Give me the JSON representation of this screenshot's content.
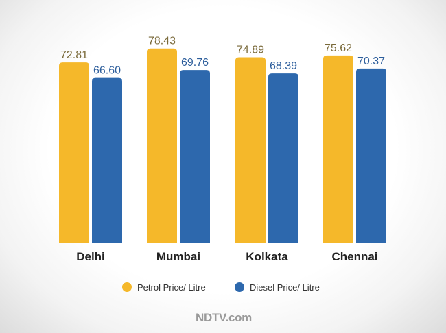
{
  "chart_data": {
    "type": "bar",
    "categories": [
      "Delhi",
      "Mumbai",
      "Kolkata",
      "Chennai"
    ],
    "series": [
      {
        "name": "Petrol Price/ Litre",
        "values": [
          72.81,
          78.43,
          74.89,
          75.62
        ],
        "color": "#f5b82a",
        "label_color": "#7a6a3a"
      },
      {
        "name": "Diesel Price/ Litre",
        "values": [
          66.6,
          69.76,
          68.39,
          70.37
        ],
        "color": "#2d68ad",
        "label_color": "#2d5e9c"
      }
    ],
    "value_labels": [
      [
        "72.81",
        "78.43",
        "74.89",
        "75.62"
      ],
      [
        "66.60",
        "69.76",
        "68.39",
        "70.37"
      ]
    ],
    "ylim": [
      0,
      80
    ],
    "grid": false,
    "legend_position": "bottom-center"
  },
  "brand": {
    "text": "NDTV.com"
  }
}
